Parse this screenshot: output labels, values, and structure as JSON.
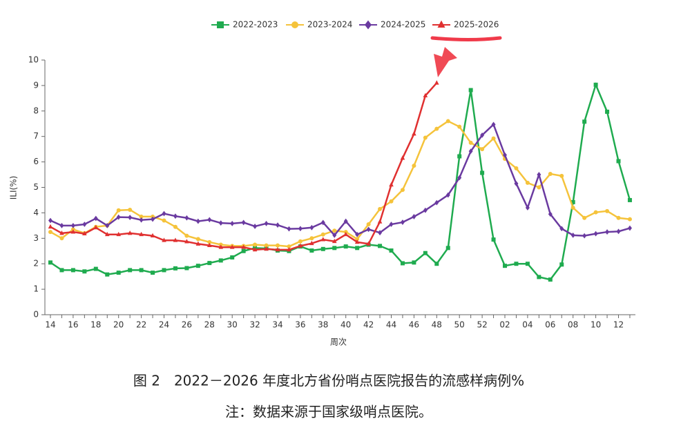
{
  "chart_data": {
    "type": "line",
    "caption": "图 2　2022－2026 年度北方省份哨点医院报告的流感样病例%",
    "note": "注：数据来源于国家级哨点医院。",
    "x_label": "周次",
    "y_label": "ILI(%)",
    "categories": [
      "14",
      null,
      "16",
      null,
      "18",
      null,
      "20",
      null,
      "22",
      null,
      "24",
      null,
      "26",
      null,
      "28",
      null,
      "30",
      null,
      "32",
      null,
      "34",
      null,
      "36",
      null,
      "38",
      null,
      "40",
      null,
      "42",
      null,
      "44",
      null,
      "46",
      null,
      "48",
      null,
      "50",
      null,
      "52",
      null,
      "02",
      null,
      "04",
      null,
      "06",
      null,
      "08",
      null,
      "10",
      null,
      "12",
      null
    ],
    "ylim": [
      0,
      10
    ],
    "yticks": [
      0,
      1,
      2,
      3,
      4,
      5,
      6,
      7,
      8,
      9,
      10
    ],
    "series": [
      {
        "name": "2022-2023",
        "color": "#1fab4f",
        "marker": "square",
        "values": [
          2.05,
          1.75,
          1.75,
          1.7,
          1.8,
          1.58,
          1.65,
          1.75,
          1.75,
          1.65,
          1.75,
          1.82,
          1.83,
          1.92,
          2.03,
          2.13,
          2.25,
          2.5,
          2.62,
          2.6,
          2.52,
          2.5,
          2.68,
          2.52,
          2.58,
          2.62,
          2.68,
          2.62,
          2.75,
          2.7,
          2.52,
          2.02,
          2.05,
          2.42,
          2.0,
          2.62,
          6.22,
          8.82,
          5.57,
          2.95,
          1.92,
          2.0,
          2.0,
          1.48,
          1.38,
          1.97,
          4.42,
          7.58,
          9.03,
          7.97,
          6.03,
          4.5
        ]
      },
      {
        "name": "2023-2024",
        "color": "#f5c33b",
        "marker": "circle",
        "values": [
          3.25,
          3.0,
          3.35,
          3.2,
          3.45,
          3.5,
          4.1,
          4.12,
          3.85,
          3.85,
          3.7,
          3.45,
          3.1,
          2.97,
          2.85,
          2.75,
          2.7,
          2.7,
          2.75,
          2.72,
          2.72,
          2.68,
          2.88,
          3.0,
          3.15,
          3.3,
          3.25,
          2.97,
          3.55,
          4.15,
          4.45,
          4.9,
          5.85,
          6.95,
          7.3,
          7.6,
          7.38,
          6.75,
          6.5,
          6.92,
          6.12,
          5.75,
          5.18,
          5.0,
          5.53,
          5.45,
          4.2,
          3.8,
          4.02,
          4.07,
          3.8,
          3.75
        ]
      },
      {
        "name": "2024-2025",
        "color": "#6a3aa0",
        "marker": "diamond",
        "values": [
          3.7,
          3.5,
          3.5,
          3.55,
          3.78,
          3.5,
          3.83,
          3.82,
          3.72,
          3.75,
          3.97,
          3.87,
          3.8,
          3.67,
          3.73,
          3.6,
          3.58,
          3.62,
          3.47,
          3.58,
          3.52,
          3.37,
          3.38,
          3.42,
          3.62,
          3.12,
          3.67,
          3.15,
          3.35,
          3.22,
          3.55,
          3.63,
          3.85,
          4.1,
          4.4,
          4.7,
          5.38,
          6.42,
          7.05,
          7.47,
          6.27,
          5.15,
          4.2,
          5.5,
          3.95,
          3.38,
          3.12,
          3.1,
          3.18,
          3.25,
          3.27,
          3.4
        ]
      },
      {
        "name": "2025-2026",
        "color": "#e03030",
        "marker": "triangle",
        "values": [
          3.45,
          3.2,
          3.25,
          3.18,
          3.42,
          3.15,
          3.15,
          3.2,
          3.15,
          3.1,
          2.92,
          2.92,
          2.87,
          2.78,
          2.72,
          2.65,
          2.65,
          2.65,
          2.55,
          2.58,
          2.55,
          2.55,
          2.7,
          2.8,
          2.95,
          2.88,
          3.15,
          2.85,
          2.78,
          3.65,
          5.1,
          6.15,
          7.1,
          8.6,
          9.1,
          null,
          null,
          null,
          null,
          null,
          null,
          null,
          null,
          null,
          null,
          null,
          null,
          null,
          null,
          null,
          null,
          null
        ]
      }
    ]
  }
}
